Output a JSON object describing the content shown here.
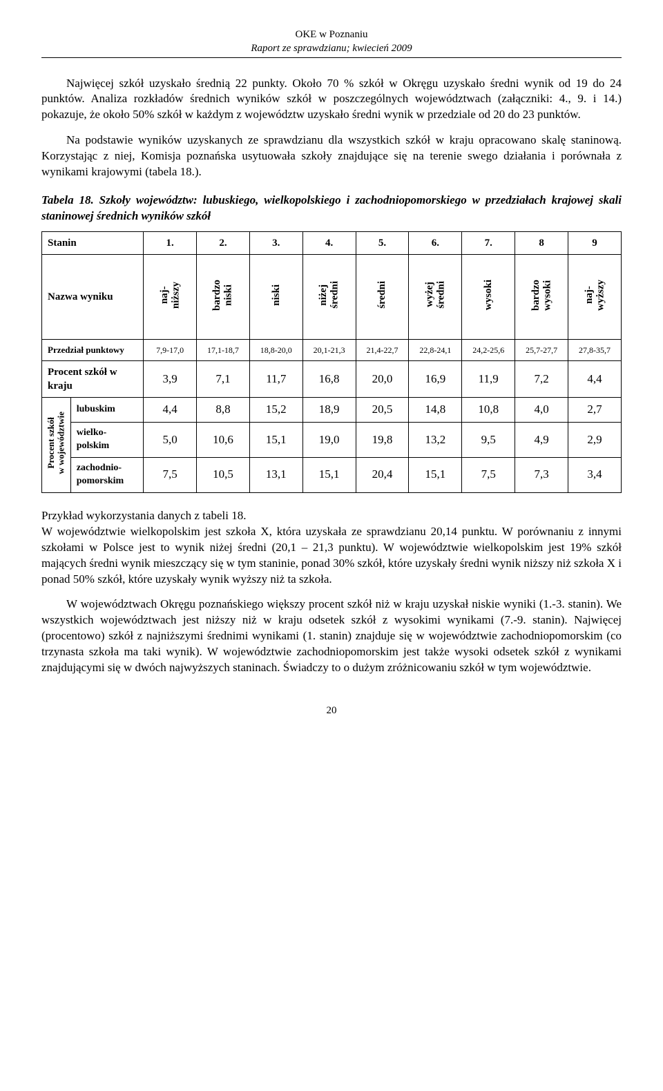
{
  "header": {
    "line1": "OKE w Poznaniu",
    "line2": "Raport ze sprawdzianu; kwiecień 2009"
  },
  "para1": "Najwięcej szkół uzyskało średnią 22 punkty. Około 70 % szkół w Okręgu uzyskało średni wynik od 19 do 24 punktów. Analiza rozkładów średnich wyników szkół w poszczególnych województwach (załączniki: 4., 9. i 14.) pokazuje, że około 50% szkół w każdym z województw uzyskało średni wynik w przedziale od 20 do 23 punktów.",
  "para2": "Na podstawie wyników uzyskanych ze sprawdzianu dla wszystkich szkół w kraju opracowano skalę staninową. Korzystając z niej, Komisja poznańska usytuowała szkoły znajdujące się na terenie swego działania i porównała z wynikami krajowymi (tabela 18.).",
  "caption": "Tabela 18. Szkoły województw: lubuskiego, wielkopolskiego i zachodniopomorskiego w przedziałach krajowej skali staninowej średnich wyników szkół",
  "table": {
    "stanin_label": "Stanin",
    "stanin_cols": [
      "1.",
      "2.",
      "3.",
      "4.",
      "5.",
      "6.",
      "7.",
      "8",
      "9"
    ],
    "nazwa_label": "Nazwa wyniku",
    "nazwa_cols": [
      "naj-\nniższy",
      "bardzo\nniski",
      "niski",
      "niżej\nśredni",
      "średni",
      "wyżej\nśredni",
      "wysoki",
      "bardzo\nwysoki",
      "naj-\nwyższy"
    ],
    "przedzial_label": "Przedział punktowy",
    "przedzial": [
      "7,9-17,0",
      "17,1-18,7",
      "18,8-20,0",
      "20,1-21,3",
      "21,4-22,7",
      "22,8-24,1",
      "24,2-25,6",
      "25,7-27,7",
      "27,8-35,7"
    ],
    "kraj_label": "Procent szkół w kraju",
    "kraj": [
      "3,9",
      "7,1",
      "11,7",
      "16,8",
      "20,0",
      "16,9",
      "11,9",
      "7,2",
      "4,4"
    ],
    "side_label": "Procent szkół\nw województwie",
    "rows": [
      {
        "label": "lubuskim",
        "v": [
          "4,4",
          "8,8",
          "15,2",
          "18,9",
          "20,5",
          "14,8",
          "10,8",
          "4,0",
          "2,7"
        ]
      },
      {
        "label": "wielko-\npolskim",
        "v": [
          "5,0",
          "10,6",
          "15,1",
          "19,0",
          "19,8",
          "13,2",
          "9,5",
          "4,9",
          "2,9"
        ]
      },
      {
        "label": "zachodnio-\npomorskim",
        "v": [
          "7,5",
          "10,5",
          "13,1",
          "15,1",
          "20,4",
          "15,1",
          "7,5",
          "7,3",
          "3,4"
        ]
      }
    ]
  },
  "para3": "Przykład wykorzystania danych z tabeli 18.\nW województwie wielkopolskim jest szkoła X, która uzyskała ze sprawdzianu 20,14 punktu. W porównaniu z innymi szkołami w Polsce jest to wynik niżej średni (20,1 – 21,3 punktu). W województwie wielkopolskim jest 19% szkół mających średni wynik mieszczący się w tym staninie, ponad 30% szkół, które uzyskały średni wynik niższy niż szkoła X i ponad 50% szkół, które uzyskały wynik wyższy niż ta szkoła.",
  "para4": "W województwach Okręgu poznańskiego większy procent szkół niż w kraju uzyskał niskie wyniki (1.-3. stanin). We wszystkich województwach jest niższy niż w kraju odsetek szkół z wysokimi wynikami (7.-9. stanin). Najwięcej (procentowo) szkół z najniższymi średnimi wynikami (1. stanin) znajduje się w województwie zachodniopomorskim (co trzynasta szkoła ma taki wynik). W województwie zachodniopomorskim jest także wysoki odsetek szkół z wynikami znajdującymi się w dwóch najwyższych staninach. Świadczy to o dużym zróżnicowaniu szkół w tym województwie.",
  "page_number": "20",
  "colors": {
    "text": "#000000",
    "background": "#ffffff",
    "border": "#000000"
  }
}
